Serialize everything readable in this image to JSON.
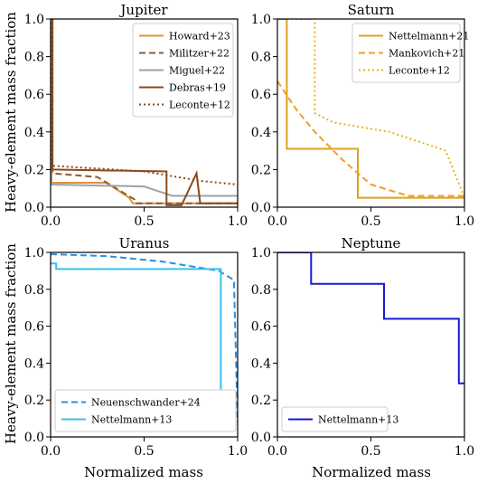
{
  "figure": {
    "ylabel": "Heavy-element mass fraction",
    "xlabel": "Normalized mass"
  },
  "chart_data": [
    {
      "type": "line",
      "title": "Jupiter",
      "xlim": [
        0,
        1
      ],
      "ylim": [
        0,
        1
      ],
      "xticks": [
        "0.0",
        "0.5",
        "1.0"
      ],
      "yticks": [
        "0.0",
        "0.2",
        "0.4",
        "0.6",
        "0.8",
        "1.0"
      ],
      "legend_position": "top-right",
      "series": [
        {
          "name": "Howard+23",
          "color": "#e0923a",
          "style": "solid",
          "x": [
            0,
            0.005,
            0.005,
            0.3,
            0.42,
            0.44,
            1.0
          ],
          "y": [
            1.0,
            1.0,
            0.13,
            0.13,
            0.05,
            0.02,
            0.02
          ]
        },
        {
          "name": "Militzer+22",
          "color": "#8c5a33",
          "style": "dashed",
          "x": [
            0,
            0.01,
            0.01,
            0.25,
            0.45,
            0.46,
            1.0
          ],
          "y": [
            1.0,
            1.0,
            0.18,
            0.16,
            0.04,
            0.02,
            0.02
          ]
        },
        {
          "name": "Miguel+22",
          "color": "#a0a0a0",
          "style": "solid",
          "x": [
            0,
            0.003,
            0.003,
            0.5,
            0.65,
            1.0
          ],
          "y": [
            1.0,
            1.0,
            0.12,
            0.11,
            0.06,
            0.06
          ]
        },
        {
          "name": "Debras+19",
          "color": "#8b4a1c",
          "style": "solid",
          "x": [
            0,
            0.01,
            0.01,
            0.62,
            0.62,
            0.7,
            0.78,
            0.8,
            1.0
          ],
          "y": [
            1.0,
            1.0,
            0.2,
            0.19,
            0.01,
            0.01,
            0.18,
            0.02,
            0.02
          ]
        },
        {
          "name": "Leconte+12",
          "color": "#8b4a1c",
          "style": "dotted",
          "x": [
            0,
            0.005,
            0.005,
            0.5,
            0.8,
            1.0
          ],
          "y": [
            1.0,
            1.0,
            0.22,
            0.19,
            0.14,
            0.12
          ]
        }
      ]
    },
    {
      "type": "line",
      "title": "Saturn",
      "xlim": [
        0,
        1
      ],
      "ylim": [
        0,
        1
      ],
      "xticks": [
        "0.0",
        "0.5",
        "1.0"
      ],
      "yticks": [
        "0.0",
        "0.2",
        "0.4",
        "0.6",
        "0.8",
        "1.0"
      ],
      "legend_position": "top-right",
      "series": [
        {
          "name": "Nettelmann+21",
          "color": "#e0a020",
          "style": "solid",
          "x": [
            0,
            0.05,
            0.05,
            0.43,
            0.43,
            1.0
          ],
          "y": [
            1.0,
            1.0,
            0.31,
            0.31,
            0.05,
            0.05
          ]
        },
        {
          "name": "Mankovich+21",
          "color": "#f0a020",
          "style": "dashed",
          "x": [
            0,
            0.1,
            0.2,
            0.35,
            0.5,
            0.7,
            1.0
          ],
          "y": [
            0.67,
            0.52,
            0.4,
            0.25,
            0.12,
            0.06,
            0.06
          ]
        },
        {
          "name": "Leconte+12",
          "color": "#f0b020",
          "style": "dotted",
          "x": [
            0,
            0.2,
            0.2,
            0.3,
            0.6,
            0.9,
            1.0
          ],
          "y": [
            1.0,
            1.0,
            0.5,
            0.45,
            0.4,
            0.3,
            0.05
          ]
        }
      ]
    },
    {
      "type": "line",
      "title": "Uranus",
      "xlim": [
        0,
        1
      ],
      "ylim": [
        0,
        1
      ],
      "xticks": [
        "0.0",
        "0.5",
        "1.0"
      ],
      "yticks": [
        "0.0",
        "0.2",
        "0.4",
        "0.6",
        "0.8",
        "1.0"
      ],
      "legend_position": "bottom-left",
      "series": [
        {
          "name": "Neuenschwander+24",
          "color": "#2a8fe0",
          "style": "dashed",
          "x": [
            0,
            0.3,
            0.6,
            0.9,
            0.98,
            1.0
          ],
          "y": [
            0.99,
            0.98,
            0.95,
            0.9,
            0.85,
            0.08
          ]
        },
        {
          "name": "Nettelmann+13",
          "color": "#3cc0ee",
          "style": "solid",
          "x": [
            0,
            0.03,
            0.03,
            0.91,
            0.91,
            0.96,
            0.96,
            1.0
          ],
          "y": [
            0.94,
            0.94,
            0.91,
            0.91,
            0.08,
            0.08,
            0.16,
            0.16
          ]
        }
      ]
    },
    {
      "type": "line",
      "title": "Neptune",
      "xlim": [
        0,
        1
      ],
      "ylim": [
        0,
        1
      ],
      "xticks": [
        "0.0",
        "0.5",
        "1.0"
      ],
      "yticks": [
        "0.0",
        "0.2",
        "0.4",
        "0.6",
        "0.8",
        "1.0"
      ],
      "legend_position": "bottom-left",
      "series": [
        {
          "name": "Nettelmann+13",
          "color": "#1a1ad0",
          "style": "solid",
          "x": [
            0,
            0.18,
            0.18,
            0.57,
            0.57,
            0.97,
            0.97,
            1.0
          ],
          "y": [
            1.0,
            1.0,
            0.83,
            0.83,
            0.64,
            0.64,
            0.29,
            0.29
          ]
        }
      ]
    }
  ]
}
